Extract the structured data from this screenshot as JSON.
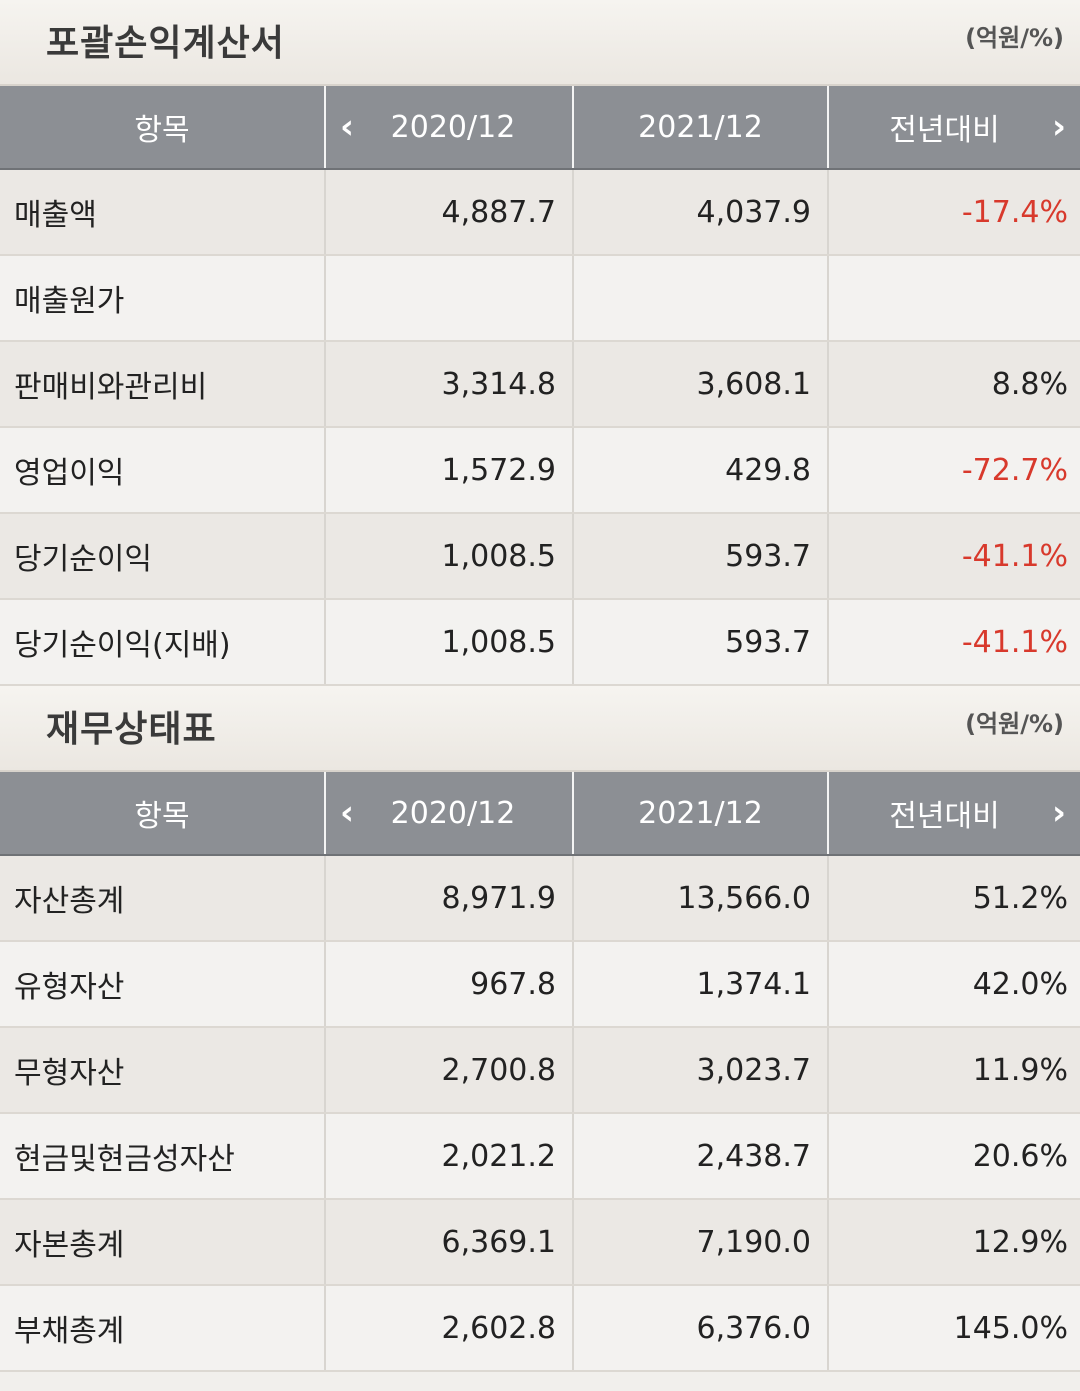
{
  "income": {
    "title": "포괄손익계산서",
    "unit": "(억원/%)",
    "headers": {
      "item": "항목",
      "y1": "2020/12",
      "y2": "2021/12",
      "yoy": "전년대비"
    },
    "rows": [
      {
        "label": "매출액",
        "y1": "4,887.7",
        "y2": "4,037.9",
        "yoy": "-17.4%"
      },
      {
        "label": "매출원가",
        "y1": "",
        "y2": "",
        "yoy": ""
      },
      {
        "label": "판매비와관리비",
        "y1": "3,314.8",
        "y2": "3,608.1",
        "yoy": "8.8%"
      },
      {
        "label": "영업이익",
        "y1": "1,572.9",
        "y2": "429.8",
        "yoy": "-72.7%"
      },
      {
        "label": "당기순이익",
        "y1": "1,008.5",
        "y2": "593.7",
        "yoy": "-41.1%"
      },
      {
        "label": "당기순이익(지배)",
        "y1": "1,008.5",
        "y2": "593.7",
        "yoy": "-41.1%"
      }
    ]
  },
  "balance": {
    "title": "재무상태표",
    "unit": "(억원/%)",
    "headers": {
      "item": "항목",
      "y1": "2020/12",
      "y2": "2021/12",
      "yoy": "전년대비"
    },
    "rows": [
      {
        "label": "자산총계",
        "y1": "8,971.9",
        "y2": "13,566.0",
        "yoy": "51.2%"
      },
      {
        "label": "유형자산",
        "y1": "967.8",
        "y2": "1,374.1",
        "yoy": "42.0%"
      },
      {
        "label": "무형자산",
        "y1": "2,700.8",
        "y2": "3,023.7",
        "yoy": "11.9%"
      },
      {
        "label": "현금및현금성자산",
        "y1": "2,021.2",
        "y2": "2,438.7",
        "yoy": "20.6%"
      },
      {
        "label": "자본총계",
        "y1": "6,369.1",
        "y2": "7,190.0",
        "yoy": "12.9%"
      },
      {
        "label": "부채총계",
        "y1": "2,602.8",
        "y2": "6,376.0",
        "yoy": "145.0%"
      }
    ]
  },
  "colors": {
    "negative": "#d8392c",
    "header_bg": "#8c8f94"
  },
  "icons": {
    "prev": "chevron-left-icon",
    "next": "chevron-right-icon"
  }
}
